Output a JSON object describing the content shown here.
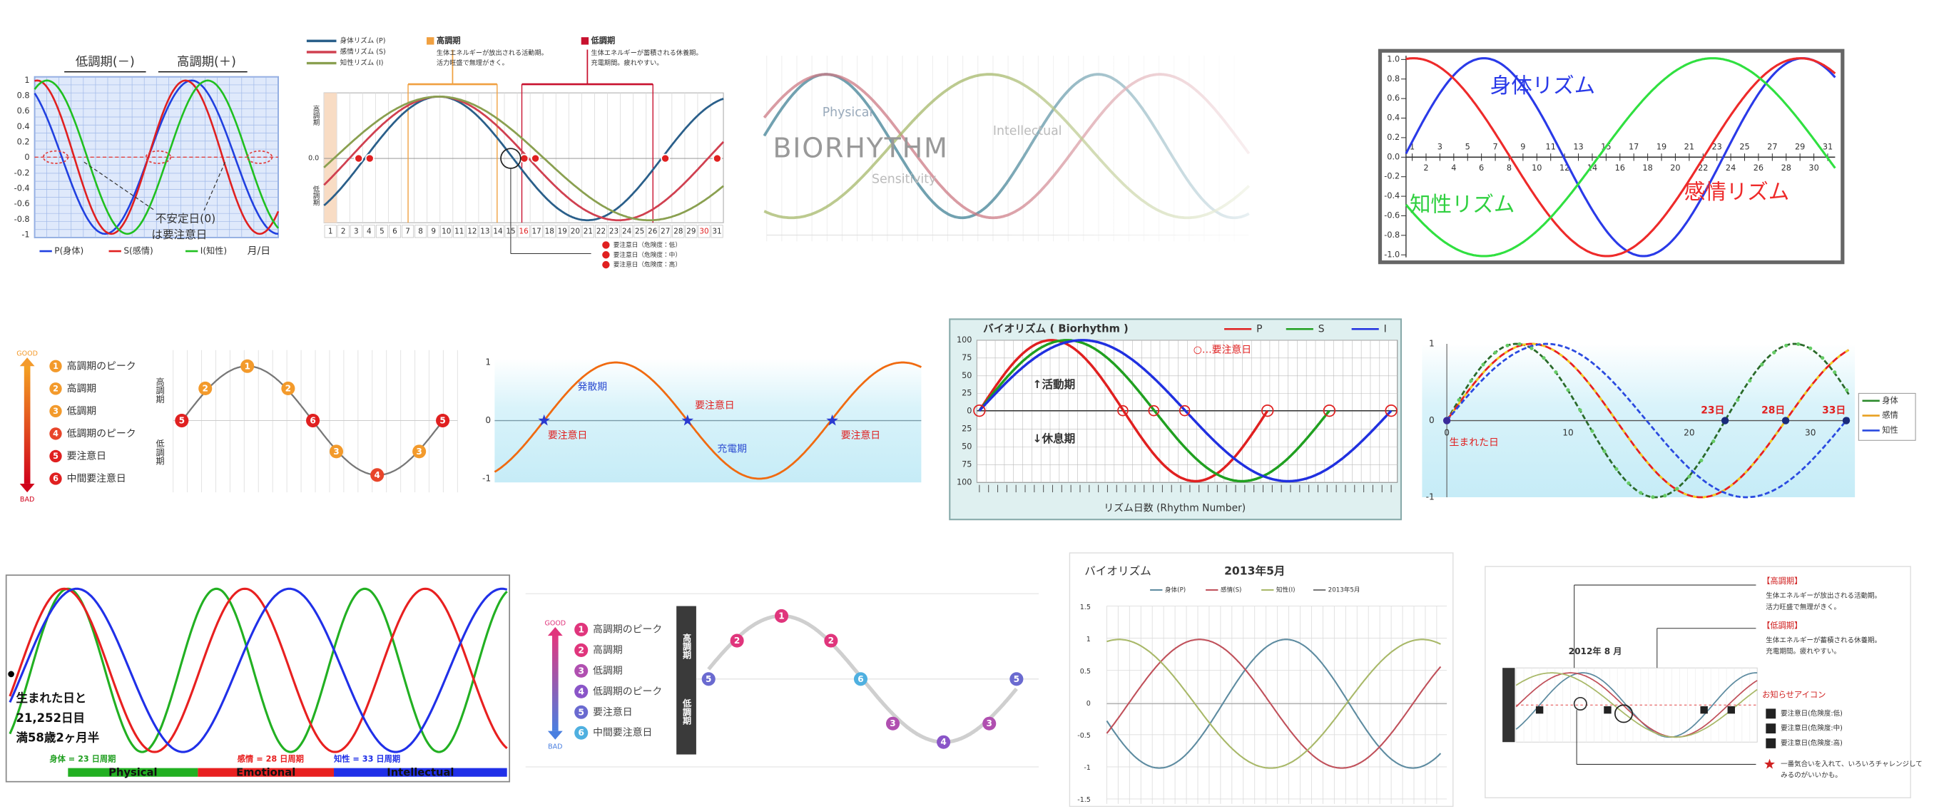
{
  "p1": {
    "phases": [
      "低調期(－)",
      "高調期(＋)"
    ],
    "yticks": [
      "1",
      "0.8",
      "0.6",
      "0.4",
      "0.2",
      "0",
      "-0.2",
      "-0.4",
      "-0.6",
      "-0.8",
      "-1"
    ],
    "note": [
      "不安定日(0)",
      "は要注意日"
    ],
    "legend": [
      "P(身体)",
      "S(感情)",
      "I(知性)"
    ],
    "unit": "月/日"
  },
  "p2": {
    "legend": [
      "身体リズム (P)",
      "感情リズム (S)",
      "知性リズム (I)"
    ],
    "high": {
      "title": "高調期",
      "text": [
        "生体エネルギーが放出される活動期。",
        "活力旺盛で無理がきく。"
      ]
    },
    "low": {
      "title": "低調期",
      "text": [
        "生体エネルギーが蓄積される休養期。",
        "充電期間。疲れやすい。"
      ]
    },
    "ylabels": [
      "高調期",
      "低調期"
    ],
    "zero": "0.0",
    "days": [
      1,
      2,
      3,
      4,
      5,
      6,
      7,
      8,
      9,
      10,
      11,
      12,
      13,
      14,
      15,
      16,
      17,
      18,
      19,
      20,
      21,
      22,
      23,
      24,
      25,
      26,
      27,
      28,
      29,
      30,
      31
    ],
    "marks": [
      "要注意日（危険度：低）",
      "要注意日（危険度：中）",
      "要注意日（危険度：高）"
    ]
  },
  "p3": {
    "title": "BIORHYTHM",
    "labels": [
      "Physical",
      "Intellectual",
      "Sensitivity"
    ]
  },
  "p4": {
    "yticks": [
      "1.0",
      "0.8",
      "0.6",
      "0.4",
      "0.2",
      "0.0",
      "-0.2",
      "-0.4",
      "-0.6",
      "-0.8",
      "-1.0"
    ],
    "days": [
      1,
      2,
      3,
      4,
      5,
      6,
      7,
      8,
      9,
      10,
      11,
      12,
      13,
      14,
      15,
      16,
      17,
      18,
      19,
      20,
      21,
      22,
      23,
      24,
      25,
      26,
      27,
      28,
      29,
      30,
      31
    ],
    "labels": [
      "身体リズム",
      "知性リズム",
      "感情リズム"
    ]
  },
  "p5": {
    "good": "GOOD",
    "bad": "BAD",
    "legend": [
      {
        "num": "1",
        "label": "高調期のピーク"
      },
      {
        "num": "2",
        "label": "高調期"
      },
      {
        "num": "3",
        "label": "低調期"
      },
      {
        "num": "4",
        "label": "低調期のピーク"
      },
      {
        "num": "5",
        "label": "要注意日"
      },
      {
        "num": "6",
        "label": "中間要注意日"
      }
    ],
    "ylabels": [
      "高調期",
      "低調期"
    ],
    "markers": [
      "5",
      "2",
      "1",
      "2",
      "6",
      "3",
      "4",
      "3",
      "5"
    ]
  },
  "p6": {
    "yticks": [
      "1",
      "0",
      "-1"
    ],
    "labels": [
      "発散期",
      "要注意日",
      "要注意日",
      "充電期",
      "要注意日"
    ]
  },
  "p7": {
    "title": "バイオリズム ( Biorhythm )",
    "legend": [
      "P",
      "S",
      "I"
    ],
    "note": "○…要注意日",
    "active": "↑活動期",
    "rest": "↓休息期",
    "xlabel": "リズム日数 (Rhythm Number)",
    "yticks": [
      "100",
      "75",
      "50",
      "25",
      "0",
      "25",
      "50",
      "75",
      "100"
    ]
  },
  "p8": {
    "legend": [
      "身体",
      "感情",
      "知性"
    ],
    "birth": "生まれた日",
    "days": [
      "23日",
      "28日",
      "33日"
    ],
    "xticks": [
      "0",
      "10",
      "20",
      "30"
    ],
    "yticks": [
      "1",
      "0",
      "-1"
    ]
  },
  "p9": {
    "note": [
      "生まれた日と",
      "21,252日目",
      "満58歳2ヶ月半"
    ],
    "cycles": [
      "身体 = 23 日周期",
      "感情 = 28 日周期",
      "知性 = 33 日周期"
    ],
    "names": [
      "Physical",
      "Emotional",
      "Intellectual"
    ]
  },
  "p10": {
    "good": "GOOD",
    "bad": "BAD",
    "legend": [
      {
        "num": "1",
        "label": "高調期のピーク"
      },
      {
        "num": "2",
        "label": "高調期"
      },
      {
        "num": "3",
        "label": "低調期"
      },
      {
        "num": "4",
        "label": "低調期のピーク"
      },
      {
        "num": "5",
        "label": "要注意日"
      },
      {
        "num": "6",
        "label": "中間要注意日"
      }
    ],
    "ylabels": [
      "高調期",
      "低調期"
    ],
    "markers": [
      "5",
      "2",
      "1",
      "2",
      "6",
      "3",
      "4",
      "3",
      "5"
    ]
  },
  "p11": {
    "title": "バイオリズム",
    "month": "2013年5月",
    "legend": [
      "身体(P)",
      "感情(S)",
      "知性(I)",
      "2013年5月"
    ],
    "yticks": [
      "1.5",
      "1",
      "0.5",
      "0",
      "-0.5",
      "-1",
      "-1.5"
    ]
  },
  "p12": {
    "high": {
      "title": "【高調期】",
      "text": [
        "生体エネルギーが放出される活動期。",
        "活力旺盛で無理がきく。"
      ]
    },
    "low": {
      "title": "【低調期】",
      "text": [
        "生体エネルギーが蓄積される休養期。",
        "充電期間。疲れやすい。"
      ]
    },
    "month": "2012年 8 月",
    "icons": "お知らせアイコン",
    "items": [
      "要注意日(危険度:低)",
      "要注意日(危険度:中)",
      "要注意日(危険度:高)"
    ],
    "star": [
      "一番気合いを入れて、いろいろチャレンジして",
      "みるのがいいかも。"
    ]
  }
}
